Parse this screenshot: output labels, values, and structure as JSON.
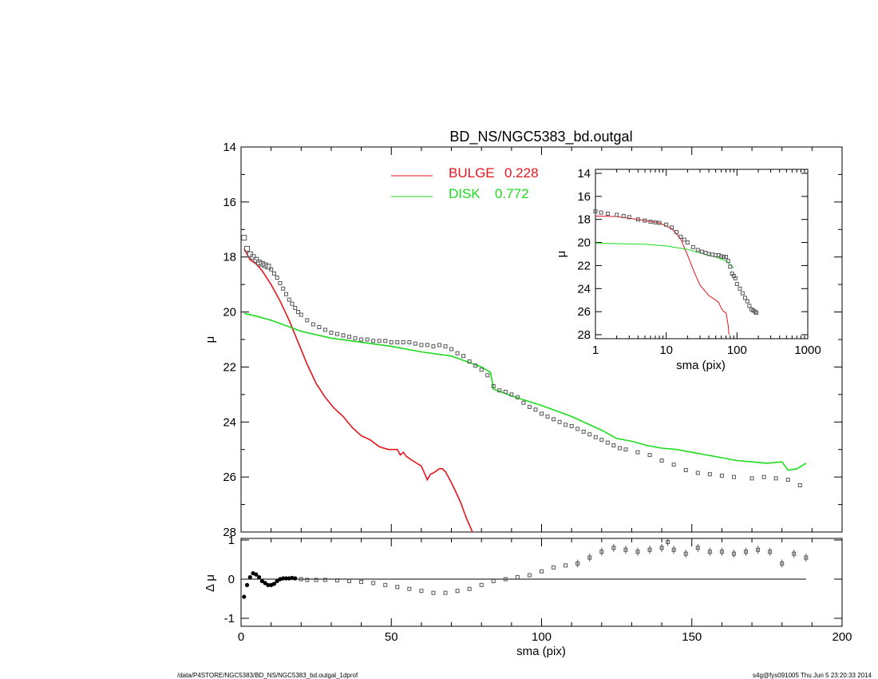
{
  "title": "BD_NS/NGC5383_bd.outgal",
  "footer_left": "/data/P4STORE/NGC5383/BD_NS/NGC5383_bd.outgal_1dprof",
  "footer_right": "s4g@fys091005  Thu Jun  5 23:20:33 2014",
  "colors": {
    "bulge": "#e8141c",
    "disk": "#1cdc1c",
    "data": "#555555",
    "axes": "#000000"
  },
  "chart_data": [
    {
      "type": "line",
      "panel": "main",
      "xlabel": "sma (pix)",
      "ylabel": "μ",
      "xlim": [
        0,
        200
      ],
      "ylim": [
        28,
        14
      ],
      "y_inverted": true,
      "xticks": [
        0,
        50,
        100,
        150,
        200
      ],
      "yticks": [
        14,
        16,
        18,
        20,
        22,
        24,
        26,
        28
      ],
      "legend": [
        {
          "name": "BULGE",
          "value": "0.228",
          "color": "#e8141c"
        },
        {
          "name": "DISK",
          "value": "0.772",
          "color": "#1cdc1c"
        }
      ],
      "series": [
        {
          "name": "BULGE",
          "style": "line",
          "color": "#e8141c",
          "x": [
            1,
            3,
            5,
            7,
            10,
            13,
            16,
            19,
            22,
            25,
            28,
            31,
            34,
            37,
            40,
            43,
            46,
            49,
            52,
            53,
            54,
            55,
            57,
            60,
            62,
            63,
            64,
            66,
            67,
            68,
            70,
            73,
            75,
            77
          ],
          "y": [
            17.7,
            18.1,
            18.25,
            18.5,
            19.0,
            19.6,
            20.3,
            21.1,
            21.9,
            22.6,
            23.1,
            23.5,
            23.8,
            24.2,
            24.5,
            24.65,
            24.9,
            25.0,
            25.0,
            25.2,
            25.1,
            25.25,
            25.4,
            25.6,
            26.1,
            25.9,
            25.85,
            25.7,
            25.7,
            25.8,
            26.2,
            26.9,
            27.5,
            28.0
          ]
        },
        {
          "name": "DISK",
          "style": "line",
          "color": "#1cdc1c",
          "x": [
            1,
            5,
            10,
            15,
            20,
            30,
            40,
            50,
            60,
            70,
            75,
            80,
            83,
            84,
            90,
            100,
            110,
            115,
            120,
            125,
            130,
            135,
            140,
            145,
            150,
            155,
            160,
            165,
            170,
            175,
            180,
            182,
            185,
            188
          ],
          "y": [
            20.05,
            20.15,
            20.3,
            20.5,
            20.7,
            20.95,
            21.1,
            21.25,
            21.45,
            21.6,
            21.8,
            22.0,
            22.2,
            22.8,
            23.05,
            23.4,
            23.8,
            24.05,
            24.3,
            24.6,
            24.7,
            24.85,
            24.95,
            25.0,
            25.1,
            25.2,
            25.3,
            25.4,
            25.45,
            25.5,
            25.45,
            25.75,
            25.7,
            25.5
          ]
        },
        {
          "name": "data",
          "style": "points",
          "color": "#555555",
          "x": [
            1,
            2,
            3,
            4,
            5,
            6,
            7,
            8,
            9,
            10,
            11,
            12,
            13,
            14,
            15,
            16,
            17,
            18,
            19,
            20,
            22,
            24,
            26,
            28,
            30,
            32,
            34,
            36,
            38,
            40,
            42,
            44,
            46,
            48,
            50,
            52,
            54,
            56,
            58,
            60,
            62,
            64,
            66,
            68,
            70,
            72,
            74,
            76,
            78,
            80,
            82,
            84,
            86,
            88,
            90,
            92,
            94,
            96,
            98,
            100,
            102,
            104,
            106,
            108,
            110,
            112,
            114,
            116,
            118,
            120,
            122,
            124,
            126,
            128,
            132,
            136,
            140,
            144,
            148,
            152,
            156,
            160,
            164,
            170,
            174,
            178,
            182,
            186
          ],
          "y": [
            17.3,
            17.7,
            17.9,
            18.0,
            18.1,
            18.2,
            18.25,
            18.3,
            18.35,
            18.45,
            18.6,
            18.75,
            18.95,
            19.15,
            19.35,
            19.55,
            19.7,
            19.85,
            20.0,
            20.1,
            20.3,
            20.45,
            20.55,
            20.65,
            20.75,
            20.8,
            20.85,
            20.9,
            20.95,
            21.0,
            21.0,
            21.05,
            21.05,
            21.05,
            21.1,
            21.1,
            21.1,
            21.1,
            21.15,
            21.2,
            21.2,
            21.25,
            21.2,
            21.25,
            21.35,
            21.5,
            21.6,
            21.8,
            21.95,
            22.1,
            22.3,
            22.7,
            22.85,
            22.9,
            23.0,
            23.1,
            23.3,
            23.45,
            23.55,
            23.7,
            23.8,
            23.9,
            24.0,
            24.1,
            24.15,
            24.25,
            24.35,
            24.45,
            24.55,
            24.65,
            24.75,
            24.85,
            24.95,
            25.0,
            25.1,
            25.2,
            25.4,
            25.55,
            25.75,
            25.85,
            25.9,
            25.95,
            26.0,
            26.05,
            26.0,
            26.05,
            26.1,
            26.3
          ]
        }
      ]
    },
    {
      "type": "scatter",
      "panel": "residual",
      "xlabel": "sma (pix)",
      "ylabel": "Δ μ",
      "xlim": [
        0,
        200
      ],
      "ylim": [
        -1,
        1
      ],
      "yticks": [
        -1,
        0,
        1
      ],
      "zero_line": true,
      "series": [
        {
          "name": "residual",
          "color": "#555555",
          "x": [
            1,
            2,
            3,
            4,
            5,
            6,
            7,
            8,
            9,
            10,
            11,
            12,
            13,
            14,
            15,
            16,
            17,
            18,
            20,
            22,
            25,
            28,
            32,
            36,
            40,
            44,
            48,
            52,
            56,
            60,
            64,
            68,
            72,
            76,
            80,
            84,
            88,
            92,
            96,
            100,
            104,
            108,
            112,
            116,
            120,
            124,
            128,
            132,
            136,
            140,
            142,
            144,
            148,
            152,
            156,
            160,
            164,
            168,
            172,
            176,
            180,
            184,
            188
          ],
          "y": [
            -0.45,
            -0.15,
            0.05,
            0.15,
            0.12,
            0.05,
            -0.05,
            -0.1,
            -0.15,
            -0.15,
            -0.12,
            -0.05,
            0.0,
            0.02,
            0.02,
            0.02,
            0.03,
            0.02,
            0.0,
            -0.02,
            -0.02,
            -0.02,
            -0.03,
            -0.05,
            -0.07,
            -0.1,
            -0.15,
            -0.2,
            -0.25,
            -0.3,
            -0.35,
            -0.35,
            -0.3,
            -0.25,
            -0.15,
            -0.05,
            0.0,
            0.05,
            0.1,
            0.2,
            0.3,
            0.35,
            0.4,
            0.55,
            0.7,
            0.8,
            0.75,
            0.7,
            0.75,
            0.8,
            0.95,
            0.75,
            0.65,
            0.8,
            0.7,
            0.7,
            0.65,
            0.7,
            0.75,
            0.7,
            0.4,
            0.65,
            0.55
          ]
        }
      ]
    },
    {
      "type": "line",
      "panel": "inset",
      "xlabel": "sma (pix)",
      "ylabel": "μ",
      "xscale": "log",
      "xlim": [
        1,
        1000
      ],
      "ylim": [
        28,
        14
      ],
      "y_inverted": true,
      "xticks": [
        1,
        10,
        100,
        1000
      ],
      "yticks": [
        14,
        16,
        18,
        20,
        22,
        24,
        26,
        28
      ],
      "series": [
        {
          "name": "BULGE",
          "style": "line",
          "color": "#e8141c",
          "x": [
            1,
            2,
            4,
            8,
            12,
            16,
            20,
            25,
            30,
            40,
            50,
            55,
            60,
            65,
            70,
            75,
            77
          ],
          "y": [
            17.7,
            17.75,
            18.0,
            18.3,
            18.8,
            19.7,
            21.1,
            22.6,
            23.7,
            24.6,
            25.0,
            25.2,
            25.7,
            26.0,
            26.1,
            27.2,
            28.0
          ]
        },
        {
          "name": "DISK",
          "style": "line",
          "color": "#1cdc1c",
          "x": [
            1,
            2,
            5,
            10,
            20,
            30,
            40,
            50,
            60,
            70,
            80,
            90
          ],
          "y": [
            20.05,
            20.1,
            20.15,
            20.3,
            20.6,
            20.9,
            21.1,
            21.25,
            21.45,
            21.6,
            21.9,
            22.2
          ]
        },
        {
          "name": "data",
          "style": "points",
          "color": "#555555",
          "x": [
            1,
            1.2,
            1.5,
            2,
            2.5,
            3,
            4,
            5,
            6,
            7,
            8,
            10,
            12,
            14,
            16,
            18,
            20,
            24,
            28,
            32,
            36,
            40,
            45,
            50,
            55,
            60,
            65,
            70,
            75,
            80,
            85,
            90,
            95,
            100,
            110,
            120,
            130,
            140,
            150,
            160,
            170,
            180,
            187
          ],
          "y": [
            17.3,
            17.4,
            17.5,
            17.6,
            17.7,
            17.8,
            18.0,
            18.1,
            18.2,
            18.25,
            18.3,
            18.45,
            18.7,
            19.1,
            19.5,
            19.75,
            20.0,
            20.4,
            20.65,
            20.8,
            20.9,
            21.0,
            21.05,
            21.1,
            21.1,
            21.2,
            21.25,
            21.25,
            21.6,
            22.1,
            22.7,
            22.9,
            23.1,
            23.6,
            24.0,
            24.4,
            24.8,
            25.1,
            25.5,
            25.8,
            25.9,
            26.0,
            26.1
          ]
        }
      ]
    }
  ]
}
